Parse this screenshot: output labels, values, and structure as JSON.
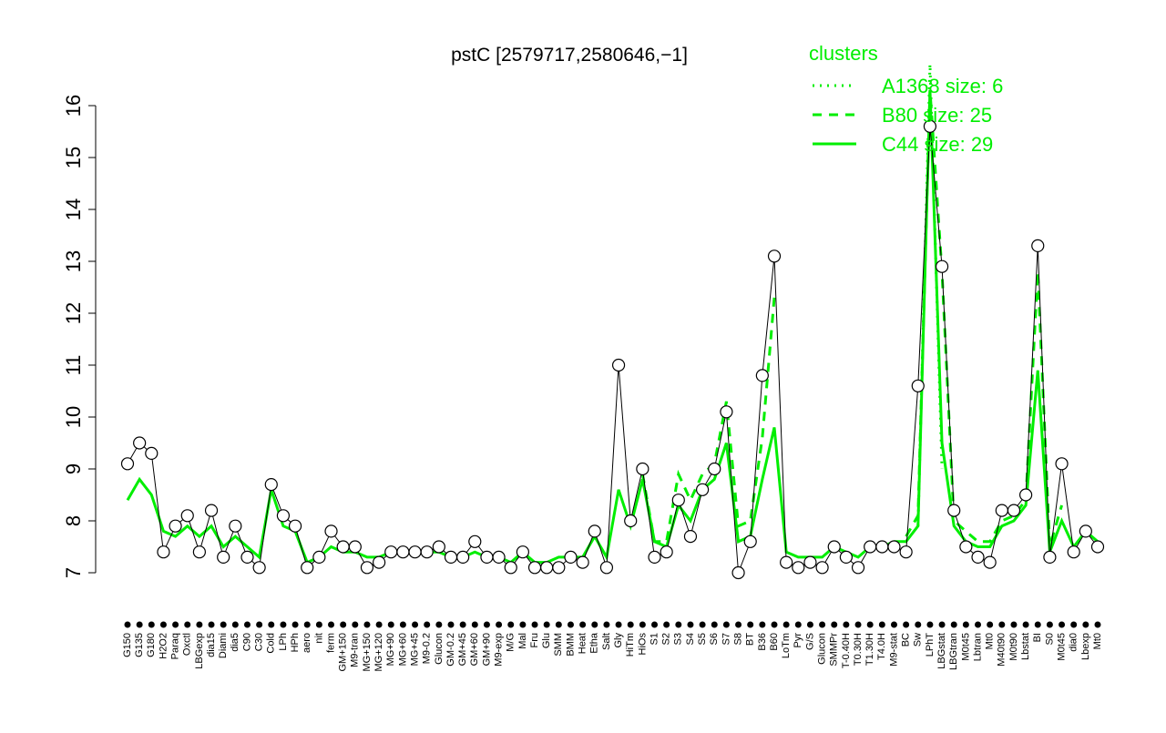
{
  "chart_data": {
    "type": "line",
    "title": "pstC [2579717,2580646,−1]",
    "categories": [
      "G150",
      "G135",
      "G180",
      "H2O2",
      "Paraq",
      "Oxctl",
      "LBGexp",
      "dia15",
      "Diami",
      "dia5",
      "C90",
      "C30",
      "Cold",
      "LPh",
      "HPh",
      "aero",
      "nit",
      "ferm",
      "GM+150",
      "M9-tran",
      "MG+150",
      "MG+120",
      "MG+90",
      "MG+60",
      "MG+45",
      "M9-0.2",
      "Glucon",
      "GM-0.2",
      "GM+45",
      "GM+60",
      "GM+90",
      "M9-exp",
      "M/G",
      "Mal",
      "Fru",
      "Glu",
      "SMM",
      "BMM",
      "Heat",
      "Etha",
      "Salt",
      "Gly",
      "HiTm",
      "HiOs",
      "S1",
      "S2",
      "S3",
      "S4",
      "S5",
      "S6",
      "S7",
      "S8",
      "BT",
      "B36",
      "B60",
      "LoTm",
      "Pyr",
      "G/S",
      "Glucon",
      "SMMPr",
      "T-0.40H",
      "T0.30H",
      "T1.30H",
      "T4.0H",
      "M9-stat",
      "BC",
      "Sw",
      "LPhT",
      "LBGstat",
      "LBGtran",
      "M0t45",
      "Lbtran",
      "Mt0",
      "M40t90",
      "M0t90",
      "Lbstat",
      "BI",
      "S0",
      "M0t45",
      "dia0",
      "Lbexp",
      "Mt0"
    ],
    "values": [
      9.1,
      9.5,
      9.3,
      7.4,
      7.9,
      8.1,
      7.4,
      8.2,
      7.3,
      7.9,
      7.3,
      7.1,
      8.7,
      8.1,
      7.9,
      7.1,
      7.3,
      7.8,
      7.5,
      7.5,
      7.1,
      7.2,
      7.4,
      7.4,
      7.4,
      7.4,
      7.5,
      7.3,
      7.3,
      7.6,
      7.3,
      7.3,
      7.1,
      7.4,
      7.1,
      7.1,
      7.1,
      7.3,
      7.2,
      7.8,
      7.1,
      11.0,
      8.0,
      9.0,
      7.3,
      7.4,
      8.4,
      7.7,
      8.6,
      9.0,
      10.1,
      7.0,
      7.6,
      10.8,
      13.1,
      7.2,
      7.1,
      7.2,
      7.1,
      7.5,
      7.3,
      7.1,
      7.5,
      7.5,
      7.5,
      7.4,
      10.6,
      15.6,
      12.9,
      8.2,
      7.5,
      7.3,
      7.2,
      8.2,
      8.2,
      8.5,
      13.3,
      7.3,
      9.1,
      7.4,
      7.8,
      7.5
    ],
    "color": "#000000",
    "series": [
      {
        "name": "A1368 size: 6",
        "color": "#00ee00",
        "linestyle": "dotted",
        "values": [
          null,
          null,
          null,
          null,
          null,
          null,
          null,
          null,
          null,
          null,
          null,
          null,
          null,
          null,
          null,
          null,
          null,
          null,
          null,
          null,
          null,
          null,
          null,
          null,
          null,
          null,
          null,
          null,
          null,
          null,
          null,
          null,
          null,
          null,
          null,
          null,
          null,
          null,
          null,
          null,
          null,
          null,
          null,
          null,
          null,
          null,
          null,
          null,
          null,
          null,
          null,
          null,
          null,
          null,
          null,
          null,
          null,
          null,
          null,
          null,
          null,
          null,
          null,
          null,
          null,
          null,
          7.9,
          16.8,
          9.0,
          null,
          null,
          null,
          null,
          null,
          null,
          null,
          null,
          null,
          null,
          null,
          null,
          null
        ]
      },
      {
        "name": "B80 size: 25",
        "color": "#00ee00",
        "linestyle": "dashed",
        "values": [
          null,
          null,
          null,
          null,
          null,
          null,
          null,
          null,
          null,
          null,
          null,
          null,
          null,
          null,
          null,
          null,
          null,
          null,
          null,
          null,
          null,
          null,
          null,
          null,
          null,
          null,
          null,
          null,
          null,
          null,
          null,
          null,
          null,
          null,
          null,
          null,
          null,
          null,
          null,
          null,
          null,
          null,
          null,
          8.9,
          7.6,
          7.6,
          8.9,
          8.4,
          8.9,
          9.1,
          10.3,
          7.9,
          8.0,
          9.6,
          12.3,
          null,
          null,
          null,
          null,
          null,
          null,
          null,
          null,
          null,
          null,
          7.7,
          8.1,
          16.3,
          12.8,
          8.0,
          7.8,
          7.6,
          7.6,
          8.0,
          8.1,
          8.4,
          12.8,
          7.5,
          8.3,
          null,
          null,
          null
        ]
      },
      {
        "name": "C44 size: 29",
        "color": "#00ee00",
        "linestyle": "solid",
        "values": [
          8.4,
          8.8,
          8.5,
          7.8,
          7.7,
          7.9,
          7.7,
          7.9,
          7.5,
          7.7,
          7.5,
          7.3,
          8.6,
          7.9,
          7.8,
          7.2,
          7.3,
          7.5,
          7.4,
          7.4,
          7.3,
          7.3,
          7.4,
          7.4,
          7.4,
          7.4,
          7.4,
          7.3,
          7.3,
          7.4,
          7.3,
          7.3,
          7.2,
          7.4,
          7.2,
          7.2,
          7.3,
          7.3,
          7.3,
          7.7,
          7.3,
          8.6,
          7.9,
          8.8,
          7.6,
          7.5,
          8.3,
          8.0,
          8.6,
          8.8,
          9.5,
          7.6,
          7.7,
          8.8,
          9.8,
          7.4,
          7.3,
          7.3,
          7.3,
          7.5,
          7.4,
          7.3,
          7.5,
          7.5,
          7.6,
          7.6,
          7.9,
          16.3,
          9.5,
          7.9,
          7.6,
          7.5,
          7.5,
          7.9,
          8.0,
          8.3,
          10.9,
          7.4,
          8.0,
          7.5,
          7.8,
          7.6
        ]
      }
    ],
    "ylim": [
      7,
      16
    ],
    "yticks": [
      7,
      8,
      9,
      10,
      11,
      12,
      13,
      14,
      15,
      16
    ],
    "legend_title": "clusters",
    "legend_position": "top-right"
  }
}
